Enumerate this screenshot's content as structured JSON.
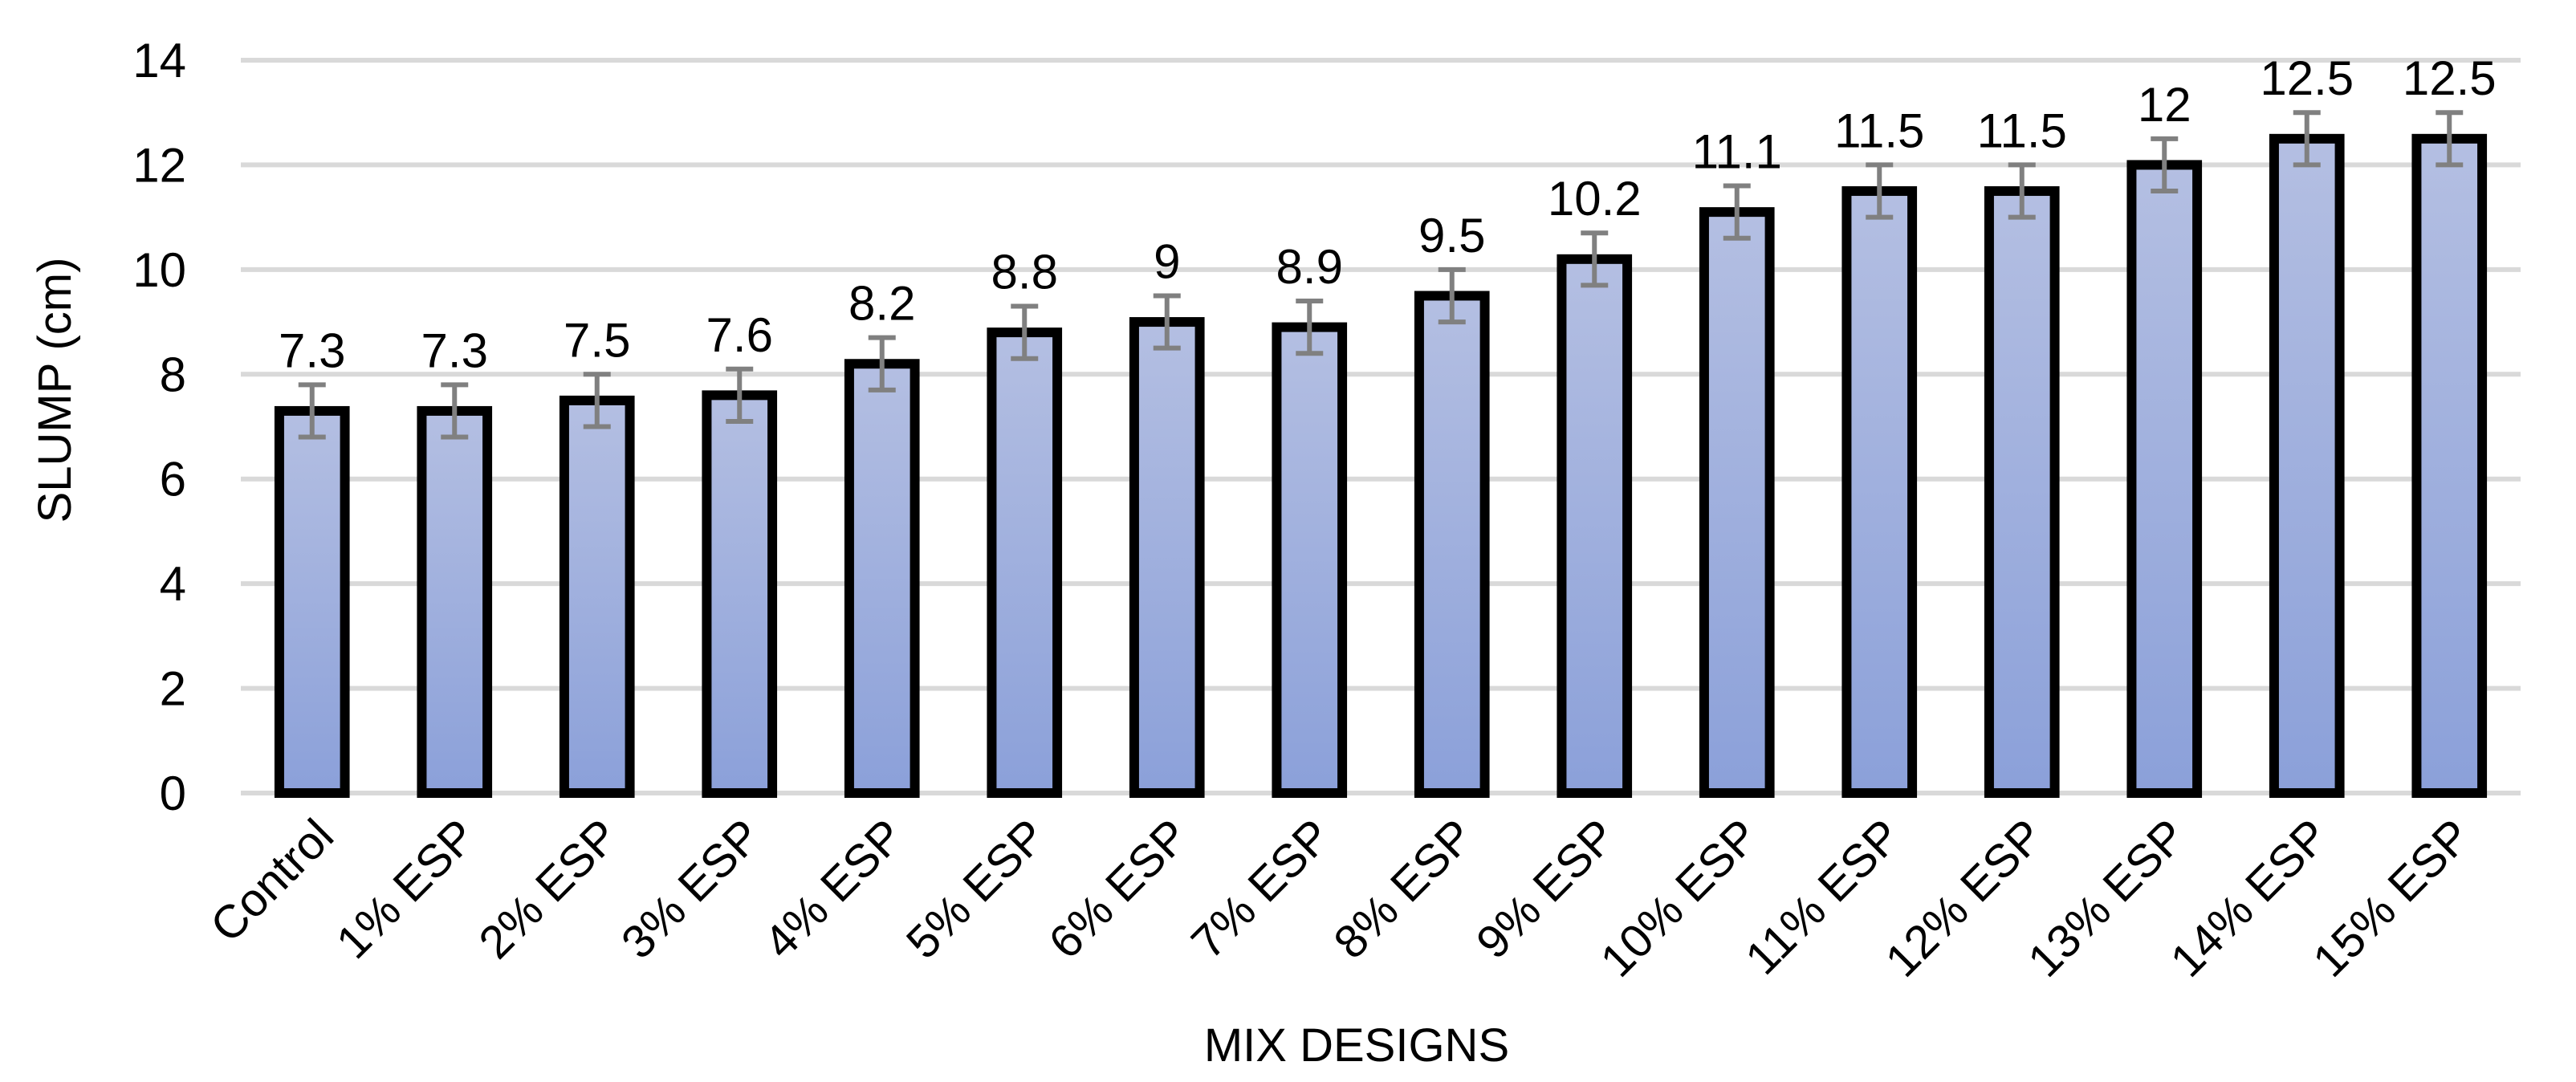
{
  "chart_data": {
    "type": "bar",
    "xlabel": "MIX DESIGNS",
    "ylabel": "SLUMP (cm)",
    "categories": [
      "Control",
      "1% ESP",
      "2% ESP",
      "3% ESP",
      "4% ESP",
      "5% ESP",
      "6% ESP",
      "7% ESP",
      "8% ESP",
      "9% ESP",
      "10% ESP",
      "11% ESP",
      "12% ESP",
      "13% ESP",
      "14% ESP",
      "15% ESP"
    ],
    "values": [
      7.3,
      7.3,
      7.5,
      7.6,
      8.2,
      8.8,
      9,
      8.9,
      9.5,
      10.2,
      11.1,
      11.5,
      11.5,
      12,
      12.5,
      12.5
    ],
    "data_labels": [
      "7.3",
      "7.3",
      "7.5",
      "7.6",
      "8.2",
      "8.8",
      "9",
      "8.9",
      "9.5",
      "10.2",
      "11.1",
      "11.5",
      "11.5",
      "12",
      "12.5",
      "12.5"
    ],
    "error": 0.5,
    "ylim": [
      0,
      14
    ],
    "yticks": [
      0,
      2,
      4,
      6,
      8,
      10,
      12,
      14
    ],
    "ytick_labels": [
      "0",
      "2",
      "4",
      "6",
      "8",
      "10",
      "12",
      "14"
    ],
    "grid": true,
    "legend": "none",
    "colors": {
      "bar_top": "#b4bfe2",
      "bar_bottom": "#8ba0d9",
      "bar_border": "#000000",
      "error_bar": "#808080",
      "gridline": "#d9d9d9"
    }
  }
}
